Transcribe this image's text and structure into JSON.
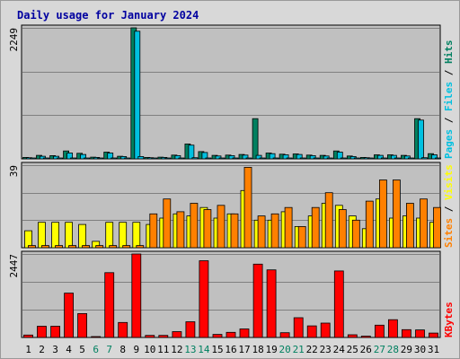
{
  "title": "Daily usage for January 2024",
  "colors": {
    "pages": "#00c0e0",
    "files": "#00c0e0",
    "hits": "#008060",
    "visits": "#ffff00",
    "sites": "#ff8000",
    "kbytes": "#ff0000",
    "title": "#0000a0",
    "weekend_day": "#008060",
    "weekday": "#000000",
    "panel_bg": "#c0c0c0",
    "frame_bg": "#d8d8d8",
    "grid": "#7f7f7f"
  },
  "chart_data": [
    {
      "type": "bar",
      "panel": "hits-files-pages",
      "categories": [
        "1",
        "2",
        "3",
        "4",
        "5",
        "6",
        "7",
        "8",
        "9",
        "10",
        "11",
        "12",
        "13",
        "14",
        "15",
        "16",
        "17",
        "18",
        "19",
        "20",
        "21",
        "22",
        "23",
        "24",
        "25",
        "26",
        "27",
        "28",
        "29",
        "30",
        "31"
      ],
      "weekend_days": [
        "6",
        "7",
        "13",
        "14",
        "20",
        "21",
        "27",
        "28"
      ],
      "ymax_label": "2249",
      "ylim": [
        0,
        2249
      ],
      "series": [
        {
          "name": "Hits",
          "values": [
            25,
            60,
            55,
            135,
            95,
            30,
            115,
            45,
            2249,
            25,
            30,
            65,
            255,
            125,
            60,
            65,
            75,
            690,
            100,
            80,
            85,
            65,
            60,
            135,
            50,
            25,
            70,
            70,
            60,
            690,
            90
          ]
        },
        {
          "name": "Files",
          "values": [
            20,
            45,
            45,
            100,
            75,
            25,
            100,
            40,
            2190,
            20,
            25,
            55,
            235,
            110,
            50,
            55,
            65,
            60,
            90,
            70,
            75,
            55,
            50,
            115,
            40,
            20,
            60,
            60,
            50,
            665,
            70
          ]
        },
        {
          "name": "Pages",
          "values": [
            5,
            10,
            8,
            15,
            10,
            5,
            12,
            5,
            40,
            5,
            5,
            8,
            20,
            15,
            8,
            8,
            10,
            10,
            10,
            8,
            8,
            8,
            6,
            15,
            6,
            5,
            8,
            8,
            6,
            20,
            10
          ]
        }
      ],
      "legend": [
        "Pages",
        "Files",
        "Hits"
      ]
    },
    {
      "type": "bar",
      "panel": "visits-sites",
      "categories": [
        "1",
        "2",
        "3",
        "4",
        "5",
        "6",
        "7",
        "8",
        "9",
        "10",
        "11",
        "12",
        "13",
        "14",
        "15",
        "16",
        "17",
        "18",
        "19",
        "20",
        "21",
        "22",
        "23",
        "24",
        "25",
        "26",
        "27",
        "28",
        "29",
        "30",
        "31"
      ],
      "ymax_label": "39",
      "ylim": [
        0,
        39
      ],
      "series": [
        {
          "name": "Visits",
          "values": [
            8,
            12,
            12,
            12,
            11,
            3,
            12,
            12,
            12,
            11,
            14,
            16,
            15,
            19,
            14,
            16,
            27,
            13,
            13,
            17,
            10,
            15,
            21,
            20,
            15,
            9,
            23,
            14,
            15,
            14,
            12
          ]
        },
        {
          "name": "Sites",
          "values": [
            1,
            1,
            1,
            1,
            1,
            1,
            1,
            1,
            1,
            16,
            23,
            17,
            21,
            18,
            20,
            16,
            38,
            15,
            16,
            19,
            10,
            19,
            26,
            18,
            13,
            22,
            32,
            32,
            21,
            23,
            19
          ]
        }
      ],
      "legend": [
        "Sites",
        "Visits"
      ]
    },
    {
      "type": "bar",
      "panel": "kbytes",
      "categories": [
        "1",
        "2",
        "3",
        "4",
        "5",
        "6",
        "7",
        "8",
        "9",
        "10",
        "11",
        "12",
        "13",
        "14",
        "15",
        "16",
        "17",
        "18",
        "19",
        "20",
        "21",
        "22",
        "23",
        "24",
        "25",
        "26",
        "27",
        "28",
        "29",
        "30",
        "31"
      ],
      "ymax_label": "2447",
      "ylim": [
        0,
        2447
      ],
      "series": [
        {
          "name": "KBytes",
          "values": [
            70,
            330,
            330,
            1300,
            700,
            20,
            1900,
            440,
            2447,
            60,
            60,
            170,
            460,
            2250,
            90,
            150,
            250,
            2150,
            1980,
            140,
            580,
            340,
            420,
            1950,
            80,
            40,
            360,
            520,
            230,
            220,
            130
          ]
        }
      ],
      "legend": [
        "KBytes"
      ]
    }
  ]
}
